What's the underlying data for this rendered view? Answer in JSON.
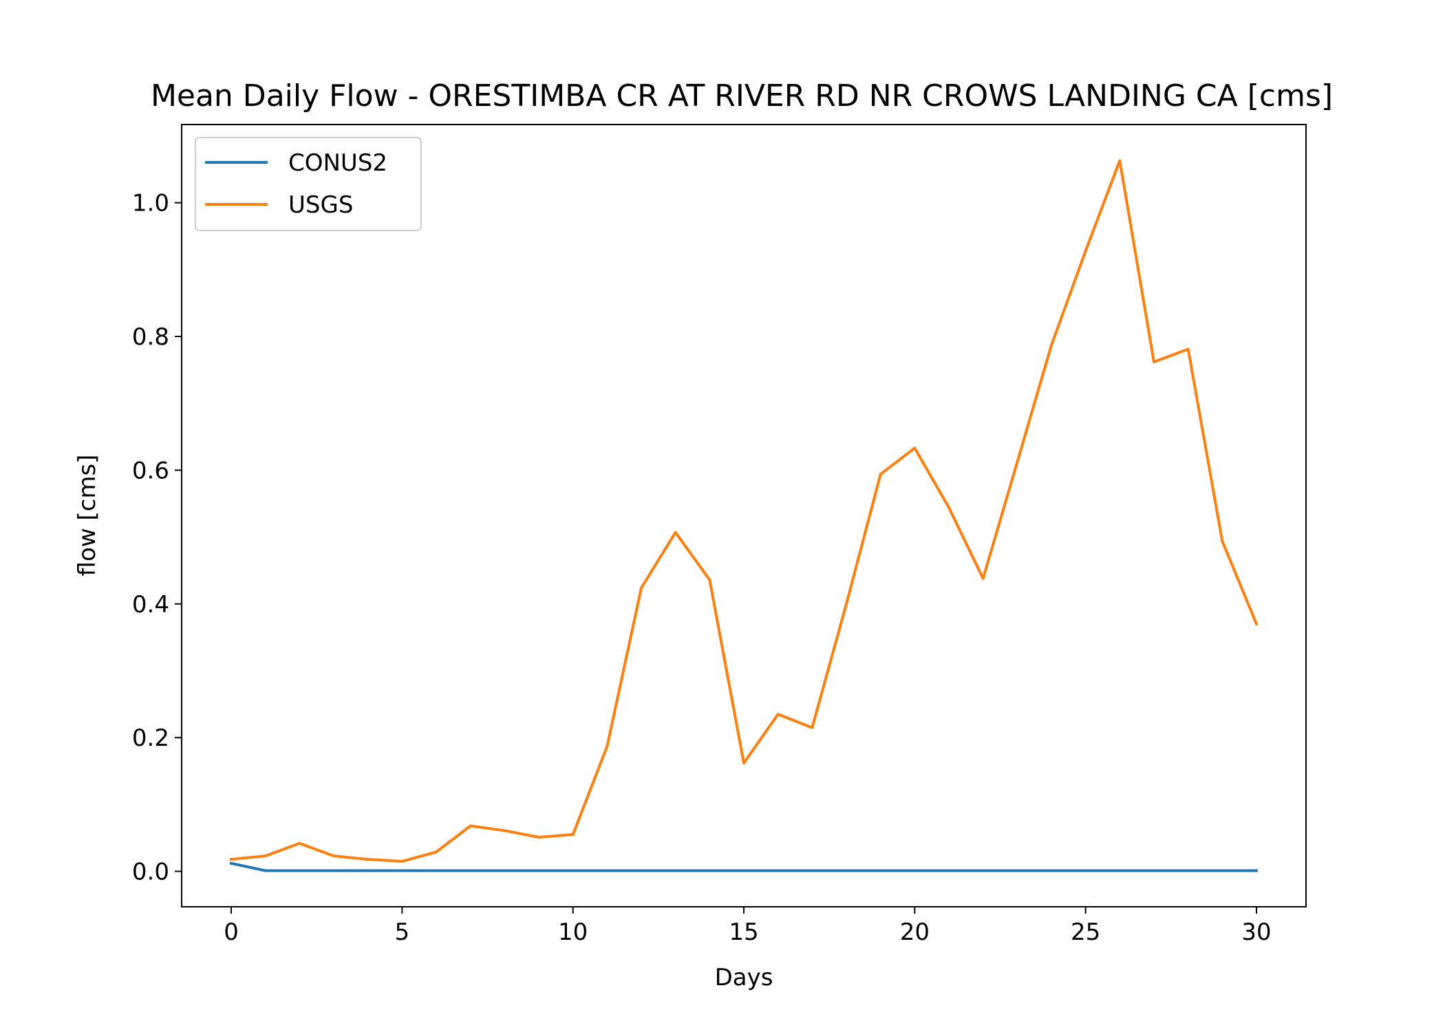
{
  "chart_data": {
    "type": "line",
    "title": "Mean Daily Flow - ORESTIMBA CR AT RIVER RD NR CROWS LANDING CA [cms]",
    "xlabel": "Days",
    "ylabel": "flow [cms]",
    "xlim": [
      -1.45,
      31.45
    ],
    "ylim": [
      -0.053,
      1.117
    ],
    "xticks": [
      0,
      5,
      10,
      15,
      20,
      25,
      30
    ],
    "xtick_labels": [
      "0",
      "5",
      "10",
      "15",
      "20",
      "25",
      "30"
    ],
    "yticks": [
      0.0,
      0.2,
      0.4,
      0.6,
      0.8,
      1.0
    ],
    "ytick_labels": [
      "0.0",
      "0.2",
      "0.4",
      "0.6",
      "0.8",
      "1.0"
    ],
    "grid": false,
    "legend_position": "top-left",
    "x": [
      0,
      1,
      2,
      3,
      4,
      5,
      6,
      7,
      8,
      9,
      10,
      11,
      12,
      13,
      14,
      15,
      16,
      17,
      18,
      19,
      20,
      21,
      22,
      23,
      24,
      25,
      26,
      27,
      28,
      29,
      30
    ],
    "series": [
      {
        "name": "CONUS2",
        "color": "#1f77b4",
        "values": [
          0.012,
          0.001,
          0.001,
          0.001,
          0.001,
          0.001,
          0.001,
          0.001,
          0.001,
          0.001,
          0.001,
          0.001,
          0.001,
          0.001,
          0.001,
          0.001,
          0.001,
          0.001,
          0.001,
          0.001,
          0.001,
          0.001,
          0.001,
          0.001,
          0.001,
          0.001,
          0.001,
          0.001,
          0.001,
          0.001,
          0.001
        ]
      },
      {
        "name": "USGS",
        "color": "#ff7f0e",
        "values": [
          0.018,
          0.023,
          0.042,
          0.023,
          0.018,
          0.015,
          0.029,
          0.068,
          0.061,
          0.051,
          0.055,
          0.187,
          0.424,
          0.507,
          0.436,
          0.162,
          0.235,
          0.215,
          0.4,
          0.594,
          0.633,
          0.544,
          0.438,
          0.612,
          0.787,
          0.928,
          1.063,
          0.762,
          0.781,
          0.494,
          0.37
        ]
      }
    ]
  }
}
